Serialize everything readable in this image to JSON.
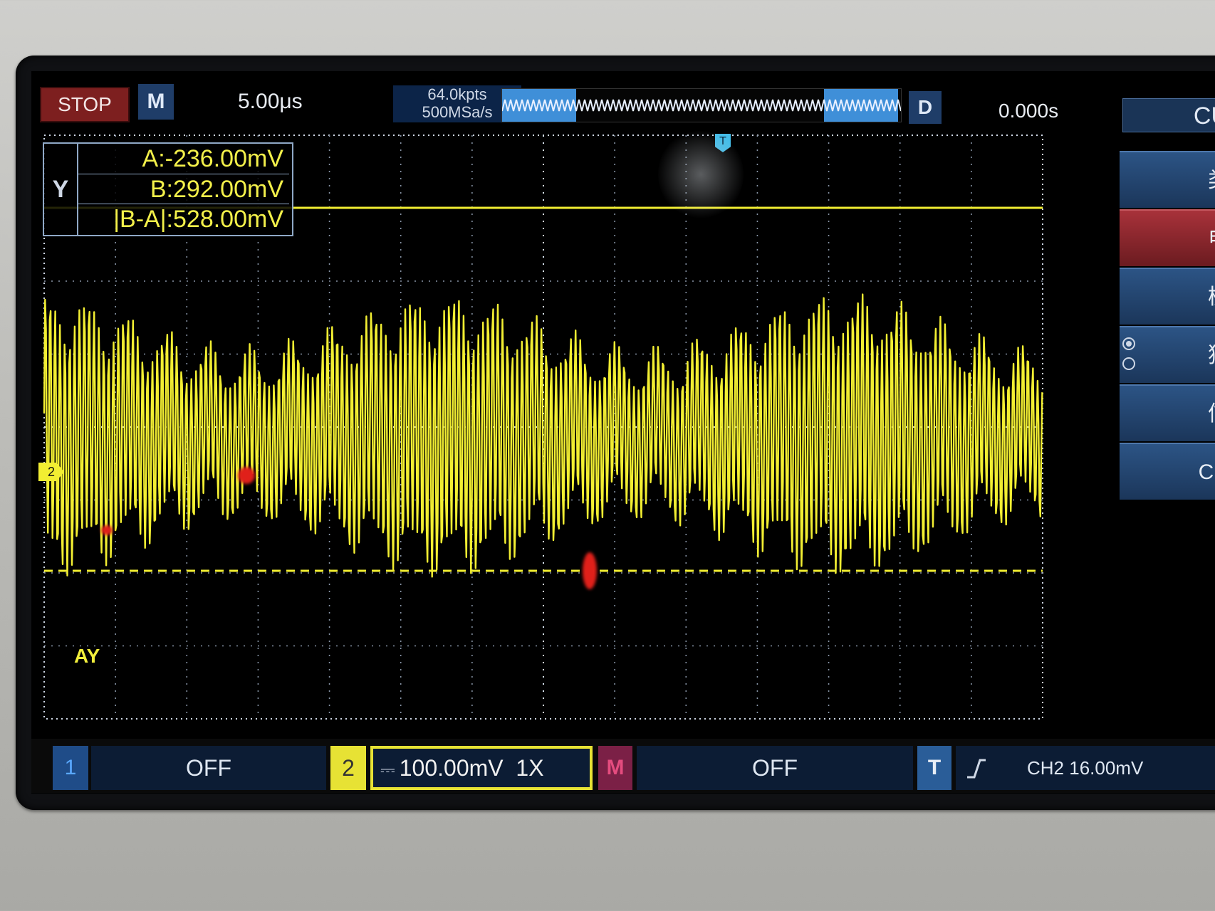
{
  "header": {
    "run_state": "STOP",
    "mode": "M",
    "timebase": "5.00μs",
    "memory_depth": "64.0kpts",
    "sample_rate": "500MSa/s",
    "d_label": "D",
    "trigger_time": "0.000s"
  },
  "right_menu": {
    "title": "CU",
    "items": [
      {
        "label": "类"
      },
      {
        "label": "电"
      },
      {
        "label": "模"
      },
      {
        "label": "独"
      },
      {
        "label": "信"
      },
      {
        "label": "CH"
      }
    ]
  },
  "cursor": {
    "axis": "Y",
    "a": "A:-236.00mV",
    "b": "B:292.00mV",
    "delta": "|B-A|:528.00mV",
    "a_label": "AY"
  },
  "markers": {
    "ch2": "2",
    "trigger": "T"
  },
  "channels": {
    "ch1_number": "1",
    "ch1_state": "OFF",
    "ch2_number": "2",
    "ch2_scale": "100.00mV",
    "ch2_probe": "1X",
    "math_label": "M",
    "math_state": "OFF",
    "trigger_label": "T",
    "trigger_info": "CH2 16.00mV"
  },
  "colors": {
    "ch2": "#f2ee32",
    "ch1": "#3d8fe0",
    "trigger": "#45bde8",
    "stop": "#7d1f1f"
  }
}
